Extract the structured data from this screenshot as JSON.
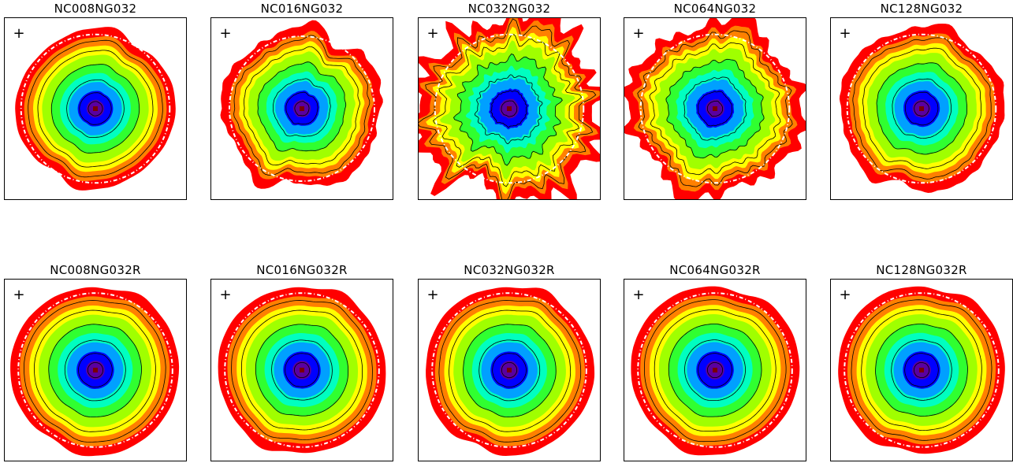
{
  "chart_data": [
    {
      "type": "heatmap",
      "title": "NC008NG032",
      "xlabel": "",
      "ylabel": "",
      "rough": 0.05,
      "spikes": 0.0,
      "outer": 0.87,
      "circle": 0.82
    },
    {
      "type": "heatmap",
      "title": "NC016NG032",
      "xlabel": "",
      "ylabel": "",
      "rough": 0.1,
      "spikes": 0.03,
      "outer": 0.87,
      "circle": 0.8
    },
    {
      "type": "heatmap",
      "title": "NC032NG032",
      "xlabel": "",
      "ylabel": "",
      "rough": 0.12,
      "spikes": 0.22,
      "outer": 0.95,
      "circle": 0.82
    },
    {
      "type": "heatmap",
      "title": "NC064NG032",
      "xlabel": "",
      "ylabel": "",
      "rough": 0.12,
      "spikes": 0.1,
      "outer": 0.92,
      "circle": 0.82
    },
    {
      "type": "heatmap",
      "title": "NC128NG032",
      "xlabel": "",
      "ylabel": "",
      "rough": 0.06,
      "spikes": 0.02,
      "outer": 0.9,
      "circle": 0.82
    },
    {
      "type": "heatmap",
      "title": "NC008NG032R",
      "xlabel": "",
      "ylabel": "",
      "rough": 0.03,
      "spikes": 0.0,
      "outer": 0.93,
      "circle": 0.85
    },
    {
      "type": "heatmap",
      "title": "NC016NG032R",
      "xlabel": "",
      "ylabel": "",
      "rough": 0.03,
      "spikes": 0.0,
      "outer": 0.93,
      "circle": 0.85
    },
    {
      "type": "heatmap",
      "title": "NC032NG032R",
      "xlabel": "",
      "ylabel": "",
      "rough": 0.03,
      "spikes": 0.0,
      "outer": 0.93,
      "circle": 0.85
    },
    {
      "type": "heatmap",
      "title": "NC064NG032R",
      "xlabel": "",
      "ylabel": "",
      "rough": 0.03,
      "spikes": 0.0,
      "outer": 0.93,
      "circle": 0.85
    },
    {
      "type": "heatmap",
      "title": "NC128NG032R",
      "xlabel": "",
      "ylabel": "",
      "rough": 0.03,
      "spikes": 0.0,
      "outer": 0.93,
      "circle": 0.85
    }
  ],
  "colors": {
    "colormap": [
      "#5a00a0",
      "#0000ff",
      "#00a0ff",
      "#00ffc0",
      "#30ff30",
      "#a0ff00",
      "#ffff00",
      "#ff8000",
      "#ff0000"
    ],
    "contour": "#000000",
    "reference_circle": "#ffffff"
  },
  "marker_symbol": "+"
}
